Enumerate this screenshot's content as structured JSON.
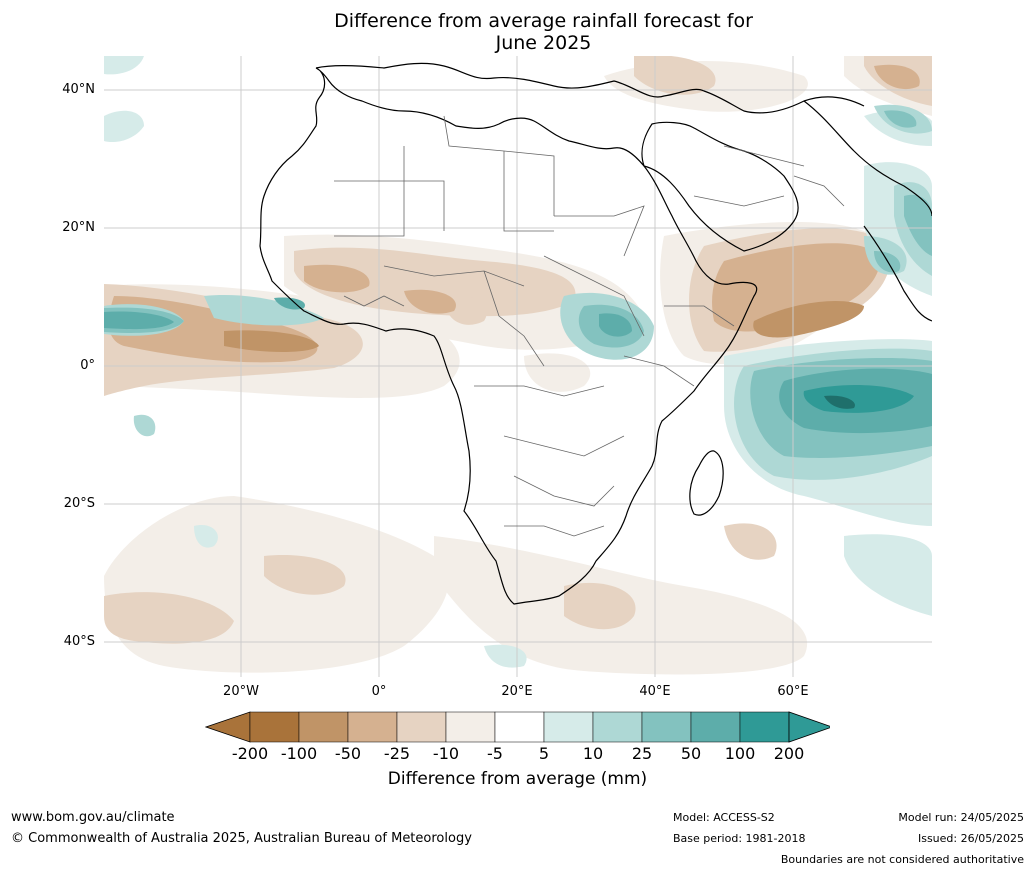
{
  "title": {
    "line1": "Difference from average rainfall forecast for",
    "line2": "June 2025"
  },
  "map": {
    "lat_labels": [
      "40°N",
      "20°N",
      "0°",
      "20°S",
      "40°S"
    ],
    "lon_labels": [
      "20°W",
      "0°",
      "20°E",
      "40°E",
      "60°E"
    ]
  },
  "colorbar": {
    "ticks": [
      "-200",
      "-100",
      "-50",
      "-25",
      "-10",
      "-5",
      "5",
      "10",
      "25",
      "50",
      "100",
      "200"
    ],
    "colors": [
      "#a9733a",
      "#c09467",
      "#d5b190",
      "#e6d3c2",
      "#f3eee8",
      "#ffffff",
      "#d6ebe9",
      "#aed8d5",
      "#83c2bf",
      "#5dadaa",
      "#2f9a96"
    ],
    "extend_low_color": "#a9733a",
    "extend_high_color": "#2f9a96",
    "label": "Difference from average (mm)"
  },
  "footer": {
    "website": "www.bom.gov.au/climate",
    "copyright": "© Commonwealth of Australia 2025, Australian Bureau of Meteorology",
    "model": "Model: ACCESS-S2",
    "base_period": "Base period: 1981-2018",
    "model_run": "Model run: 24/05/2025",
    "issued": "Issued: 26/05/2025",
    "disclaimer": "Boundaries are not considered authoritative"
  }
}
